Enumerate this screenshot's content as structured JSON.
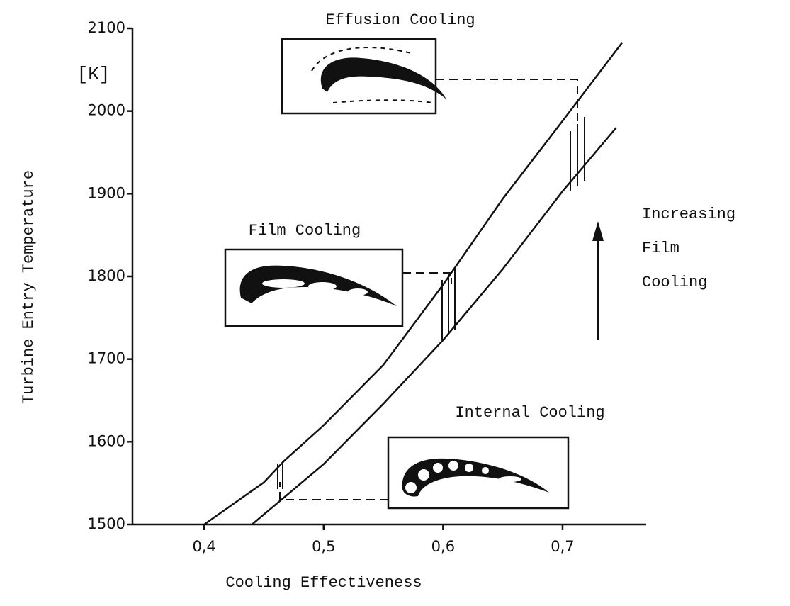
{
  "chart_data": {
    "type": "line",
    "x_label": "Cooling Effectiveness",
    "y_label": "Turbine Entry Temperature",
    "y_unit": "[K]",
    "xlim": [
      0.34,
      0.77
    ],
    "ylim": [
      1500,
      2100
    ],
    "xticks": [
      {
        "value": 0.4,
        "label": "0,4"
      },
      {
        "value": 0.5,
        "label": "0,5"
      },
      {
        "value": 0.6,
        "label": "0,6"
      },
      {
        "value": 0.7,
        "label": "0,7"
      }
    ],
    "yticks": [
      1500,
      1600,
      1700,
      1800,
      1900,
      2000,
      2100
    ],
    "series": [
      {
        "color": "#111111",
        "x": [
          0.4,
          0.45,
          0.467,
          0.5,
          0.55,
          0.6,
          0.65,
          0.7,
          0.75
        ],
        "values": [
          1500,
          1551,
          1577,
          1620,
          1693,
          1790,
          1894,
          1988,
          2083
        ]
      },
      {
        "color": "#111111",
        "x": [
          0.44,
          0.5,
          0.55,
          0.6,
          0.65,
          0.7,
          0.745
        ],
        "values": [
          1500,
          1573,
          1646,
          1723,
          1809,
          1903,
          1980
        ]
      }
    ],
    "annotations": [
      "Effusion Cooling",
      "Film Cooling",
      "Internal Cooling",
      "Increasing",
      "Film",
      "Cooling"
    ]
  }
}
